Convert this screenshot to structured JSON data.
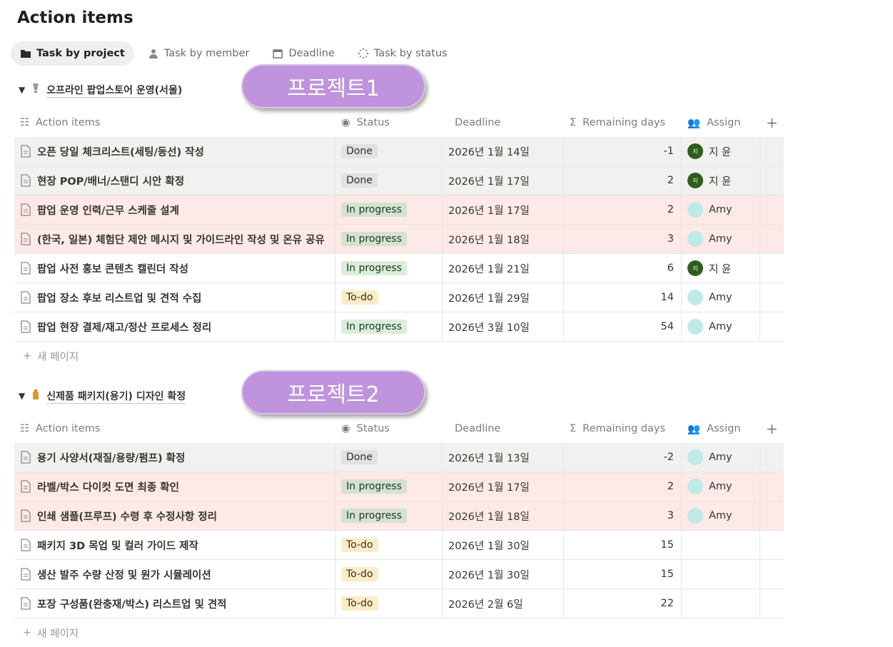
{
  "page": {
    "title": "Action items"
  },
  "tabs": [
    {
      "label": "Task by project",
      "icon": "folder-icon",
      "active": true
    },
    {
      "label": "Task by member",
      "icon": "person-icon"
    },
    {
      "label": "Deadline",
      "icon": "calendar-icon"
    },
    {
      "label": "Task by status",
      "icon": "loading-icon"
    }
  ],
  "columns": {
    "name": "Action items",
    "status": "Status",
    "deadline": "Deadline",
    "remaining": "Remaining days",
    "assign": "Assign",
    "add": "+"
  },
  "new_page_label": "새 페이지",
  "colors": {
    "overlay": "#bf94dc",
    "done": "#e3e2e0",
    "in_progress": "#dbeddb",
    "todo": "#fdecc8",
    "overdue_row": "#fde9e7"
  },
  "groups": [
    {
      "title": "오프라인 팝업스토어 운영(서울)",
      "icon": "bulb-icon",
      "overlay": "프로젝트1",
      "rows": [
        {
          "name": "오픈 당일 체크리스트(세팅/동선) 작성",
          "status": "Done",
          "deadline": "2026년 1월 14일",
          "remaining": "-1",
          "assign": "지 윤",
          "tone": "gray"
        },
        {
          "name": "현장 POP/배너/스탠디 시안 확정",
          "status": "Done",
          "deadline": "2026년 1월 17일",
          "remaining": "2",
          "assign": "지 윤",
          "tone": "gray"
        },
        {
          "name": "팝업 운영 인력/근무 스케줄 설계",
          "status": "In progress",
          "deadline": "2026년 1월 17일",
          "remaining": "2",
          "assign": "Amy",
          "tone": "pink"
        },
        {
          "name": "(한국, 일본) 체험단 제안 메시지 및 가이드라인 작성 및 온유 공유",
          "status": "In progress",
          "deadline": "2026년 1월 18일",
          "remaining": "3",
          "assign": "Amy",
          "tone": "pink"
        },
        {
          "name": "팝업 사전 홍보 콘텐츠 캘린더 작성",
          "status": "In progress",
          "deadline": "2026년 1월 21일",
          "remaining": "6",
          "assign": "지 윤",
          "tone": ""
        },
        {
          "name": "팝업 장소 후보 리스트업 및 견적 수집",
          "status": "To-do",
          "deadline": "2026년 1월 29일",
          "remaining": "14",
          "assign": "Amy",
          "tone": ""
        },
        {
          "name": "팝업 현장 결제/재고/정산 프로세스 정리",
          "status": "In progress",
          "deadline": "2026년 3월 10일",
          "remaining": "54",
          "assign": "Amy",
          "tone": ""
        }
      ]
    },
    {
      "title": "신제품 패키지(용기) 디자인 확정",
      "icon": "bottle-icon",
      "overlay": "프로젝트2",
      "rows": [
        {
          "name": "용기 사양서(재질/용량/펌프) 확정",
          "status": "Done",
          "deadline": "2026년 1월 13일",
          "remaining": "-2",
          "assign": "Amy",
          "tone": "gray"
        },
        {
          "name": "라벨/박스 다이컷 도면 최종 확인",
          "status": "In progress",
          "deadline": "2026년 1월 17일",
          "remaining": "2",
          "assign": "Amy",
          "tone": "pink"
        },
        {
          "name": "인쇄 샘플(프루프) 수령 후 수정사항 정리",
          "status": "In progress",
          "deadline": "2026년 1월 18일",
          "remaining": "3",
          "assign": "Amy",
          "tone": "pink"
        },
        {
          "name": "패키지 3D 목업 및 컬러 가이드 제작",
          "status": "To-do",
          "deadline": "2026년 1월 30일",
          "remaining": "15",
          "assign": "",
          "tone": ""
        },
        {
          "name": "생산 발주 수량 산정 및 원가 시뮬레이션",
          "status": "To-do",
          "deadline": "2026년 1월 30일",
          "remaining": "15",
          "assign": "",
          "tone": ""
        },
        {
          "name": "포장 구성품(완충재/박스) 리스트업 및 견적",
          "status": "To-do",
          "deadline": "2026년 2월 6일",
          "remaining": "22",
          "assign": "",
          "tone": ""
        }
      ]
    }
  ]
}
